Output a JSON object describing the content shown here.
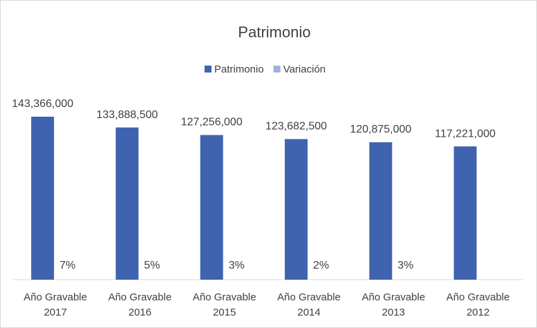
{
  "chart_data": {
    "type": "bar",
    "title": "Patrimonio",
    "categories": [
      "Año Gravable 2017",
      "Año Gravable 2016",
      "Año Gravable 2015",
      "Año Gravable 2014",
      "Año Gravable 2013",
      "Año Gravable 2012"
    ],
    "series": [
      {
        "name": "Patrimonio",
        "color": "#4063b0",
        "values": [
          143366000,
          133888500,
          127256000,
          123682500,
          120875000,
          117221000
        ],
        "value_labels": [
          "143,366,000",
          "133,888,500",
          "127,256,000",
          "123,682,500",
          "120,875,000",
          "117,221,000"
        ]
      },
      {
        "name": "Variación",
        "color": "#9fb0dd",
        "values": [
          7,
          5,
          3,
          2,
          3,
          null
        ],
        "value_labels": [
          "7%",
          "5%",
          "3%",
          "2%",
          "3%",
          null
        ]
      }
    ],
    "legend": "top"
  }
}
